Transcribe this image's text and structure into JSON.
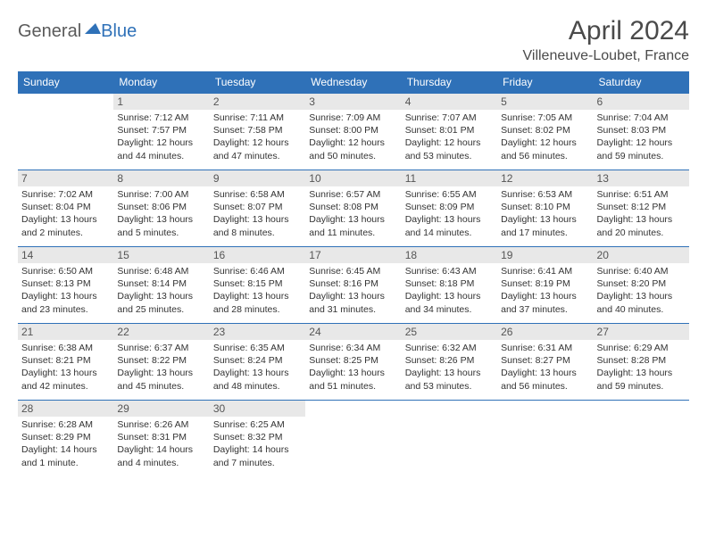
{
  "brand": {
    "part1": "General",
    "part2": "Blue"
  },
  "title": "April 2024",
  "location": "Villeneuve-Loubet, France",
  "colors": {
    "header_bg": "#2f71b8",
    "header_fg": "#ffffff",
    "daynum_bg": "#e8e8e8",
    "rule": "#2f71b8",
    "text": "#333333"
  },
  "days_of_week": [
    "Sunday",
    "Monday",
    "Tuesday",
    "Wednesday",
    "Thursday",
    "Friday",
    "Saturday"
  ],
  "weeks": [
    [
      null,
      {
        "n": "1",
        "sunrise": "Sunrise: 7:12 AM",
        "sunset": "Sunset: 7:57 PM",
        "day1": "Daylight: 12 hours",
        "day2": "and 44 minutes."
      },
      {
        "n": "2",
        "sunrise": "Sunrise: 7:11 AM",
        "sunset": "Sunset: 7:58 PM",
        "day1": "Daylight: 12 hours",
        "day2": "and 47 minutes."
      },
      {
        "n": "3",
        "sunrise": "Sunrise: 7:09 AM",
        "sunset": "Sunset: 8:00 PM",
        "day1": "Daylight: 12 hours",
        "day2": "and 50 minutes."
      },
      {
        "n": "4",
        "sunrise": "Sunrise: 7:07 AM",
        "sunset": "Sunset: 8:01 PM",
        "day1": "Daylight: 12 hours",
        "day2": "and 53 minutes."
      },
      {
        "n": "5",
        "sunrise": "Sunrise: 7:05 AM",
        "sunset": "Sunset: 8:02 PM",
        "day1": "Daylight: 12 hours",
        "day2": "and 56 minutes."
      },
      {
        "n": "6",
        "sunrise": "Sunrise: 7:04 AM",
        "sunset": "Sunset: 8:03 PM",
        "day1": "Daylight: 12 hours",
        "day2": "and 59 minutes."
      }
    ],
    [
      {
        "n": "7",
        "sunrise": "Sunrise: 7:02 AM",
        "sunset": "Sunset: 8:04 PM",
        "day1": "Daylight: 13 hours",
        "day2": "and 2 minutes."
      },
      {
        "n": "8",
        "sunrise": "Sunrise: 7:00 AM",
        "sunset": "Sunset: 8:06 PM",
        "day1": "Daylight: 13 hours",
        "day2": "and 5 minutes."
      },
      {
        "n": "9",
        "sunrise": "Sunrise: 6:58 AM",
        "sunset": "Sunset: 8:07 PM",
        "day1": "Daylight: 13 hours",
        "day2": "and 8 minutes."
      },
      {
        "n": "10",
        "sunrise": "Sunrise: 6:57 AM",
        "sunset": "Sunset: 8:08 PM",
        "day1": "Daylight: 13 hours",
        "day2": "and 11 minutes."
      },
      {
        "n": "11",
        "sunrise": "Sunrise: 6:55 AM",
        "sunset": "Sunset: 8:09 PM",
        "day1": "Daylight: 13 hours",
        "day2": "and 14 minutes."
      },
      {
        "n": "12",
        "sunrise": "Sunrise: 6:53 AM",
        "sunset": "Sunset: 8:10 PM",
        "day1": "Daylight: 13 hours",
        "day2": "and 17 minutes."
      },
      {
        "n": "13",
        "sunrise": "Sunrise: 6:51 AM",
        "sunset": "Sunset: 8:12 PM",
        "day1": "Daylight: 13 hours",
        "day2": "and 20 minutes."
      }
    ],
    [
      {
        "n": "14",
        "sunrise": "Sunrise: 6:50 AM",
        "sunset": "Sunset: 8:13 PM",
        "day1": "Daylight: 13 hours",
        "day2": "and 23 minutes."
      },
      {
        "n": "15",
        "sunrise": "Sunrise: 6:48 AM",
        "sunset": "Sunset: 8:14 PM",
        "day1": "Daylight: 13 hours",
        "day2": "and 25 minutes."
      },
      {
        "n": "16",
        "sunrise": "Sunrise: 6:46 AM",
        "sunset": "Sunset: 8:15 PM",
        "day1": "Daylight: 13 hours",
        "day2": "and 28 minutes."
      },
      {
        "n": "17",
        "sunrise": "Sunrise: 6:45 AM",
        "sunset": "Sunset: 8:16 PM",
        "day1": "Daylight: 13 hours",
        "day2": "and 31 minutes."
      },
      {
        "n": "18",
        "sunrise": "Sunrise: 6:43 AM",
        "sunset": "Sunset: 8:18 PM",
        "day1": "Daylight: 13 hours",
        "day2": "and 34 minutes."
      },
      {
        "n": "19",
        "sunrise": "Sunrise: 6:41 AM",
        "sunset": "Sunset: 8:19 PM",
        "day1": "Daylight: 13 hours",
        "day2": "and 37 minutes."
      },
      {
        "n": "20",
        "sunrise": "Sunrise: 6:40 AM",
        "sunset": "Sunset: 8:20 PM",
        "day1": "Daylight: 13 hours",
        "day2": "and 40 minutes."
      }
    ],
    [
      {
        "n": "21",
        "sunrise": "Sunrise: 6:38 AM",
        "sunset": "Sunset: 8:21 PM",
        "day1": "Daylight: 13 hours",
        "day2": "and 42 minutes."
      },
      {
        "n": "22",
        "sunrise": "Sunrise: 6:37 AM",
        "sunset": "Sunset: 8:22 PM",
        "day1": "Daylight: 13 hours",
        "day2": "and 45 minutes."
      },
      {
        "n": "23",
        "sunrise": "Sunrise: 6:35 AM",
        "sunset": "Sunset: 8:24 PM",
        "day1": "Daylight: 13 hours",
        "day2": "and 48 minutes."
      },
      {
        "n": "24",
        "sunrise": "Sunrise: 6:34 AM",
        "sunset": "Sunset: 8:25 PM",
        "day1": "Daylight: 13 hours",
        "day2": "and 51 minutes."
      },
      {
        "n": "25",
        "sunrise": "Sunrise: 6:32 AM",
        "sunset": "Sunset: 8:26 PM",
        "day1": "Daylight: 13 hours",
        "day2": "and 53 minutes."
      },
      {
        "n": "26",
        "sunrise": "Sunrise: 6:31 AM",
        "sunset": "Sunset: 8:27 PM",
        "day1": "Daylight: 13 hours",
        "day2": "and 56 minutes."
      },
      {
        "n": "27",
        "sunrise": "Sunrise: 6:29 AM",
        "sunset": "Sunset: 8:28 PM",
        "day1": "Daylight: 13 hours",
        "day2": "and 59 minutes."
      }
    ],
    [
      {
        "n": "28",
        "sunrise": "Sunrise: 6:28 AM",
        "sunset": "Sunset: 8:29 PM",
        "day1": "Daylight: 14 hours",
        "day2": "and 1 minute."
      },
      {
        "n": "29",
        "sunrise": "Sunrise: 6:26 AM",
        "sunset": "Sunset: 8:31 PM",
        "day1": "Daylight: 14 hours",
        "day2": "and 4 minutes."
      },
      {
        "n": "30",
        "sunrise": "Sunrise: 6:25 AM",
        "sunset": "Sunset: 8:32 PM",
        "day1": "Daylight: 14 hours",
        "day2": "and 7 minutes."
      },
      null,
      null,
      null,
      null
    ]
  ]
}
